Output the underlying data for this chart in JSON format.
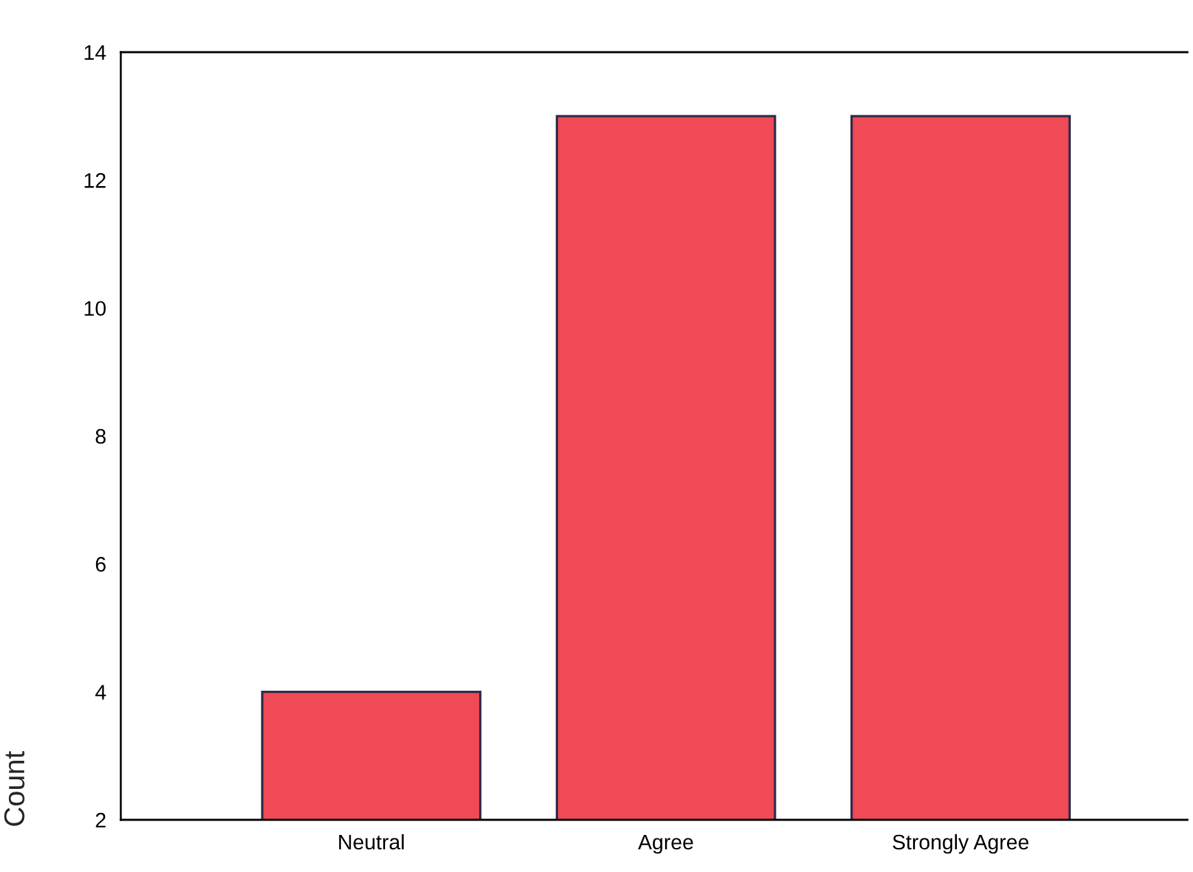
{
  "chart_data": {
    "type": "bar",
    "ylabel": "Count",
    "categories": [
      "Neutral",
      "Agree",
      "Strongly Agree"
    ],
    "values": [
      4,
      13,
      13
    ],
    "color": "#ef4a55",
    "ylim": [
      2,
      14
    ],
    "yticks": [
      2,
      4,
      6,
      8,
      10,
      12,
      14
    ],
    "grid": false
  }
}
